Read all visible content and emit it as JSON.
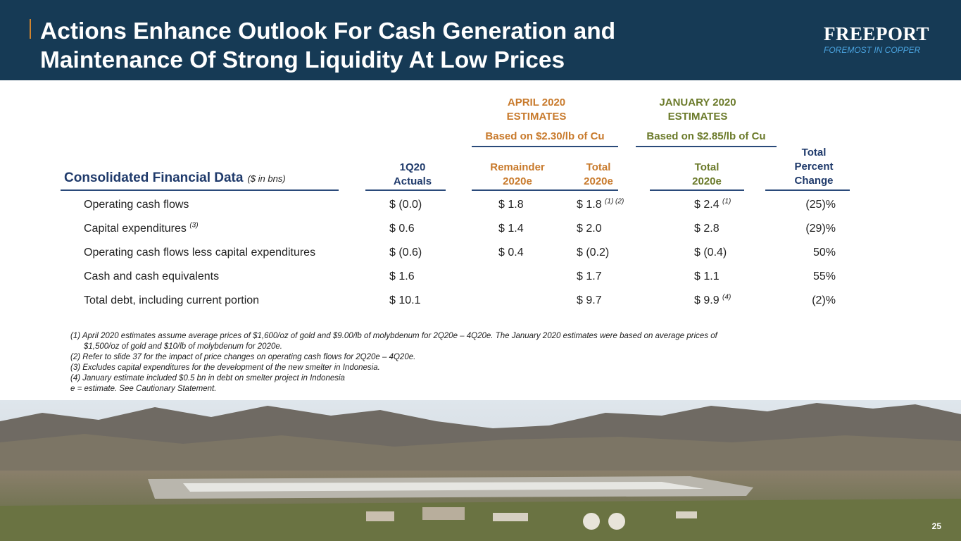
{
  "header": {
    "title_line1": "Actions Enhance Outlook For Cash Generation and",
    "title_line2": "Maintenance Of Strong Liquidity At Low Prices",
    "logo_name": "FREEPORT",
    "logo_tagline": "FOREMOST IN COPPER"
  },
  "groups": {
    "april_line1": "APRIL 2020",
    "april_line2": "ESTIMATES",
    "april_basis": "Based on $2.30/lb of Cu",
    "jan_line1": "JANUARY 2020",
    "jan_line2": "ESTIMATES",
    "jan_basis": "Based on $2.85/lb of Cu"
  },
  "columns": {
    "section": "Consolidated Financial Data",
    "unit": "($ in bns)",
    "actuals_1": "1Q20",
    "actuals_2": "Actuals",
    "remainder_1": "Remainder",
    "remainder_2": "2020e",
    "april_total_1": "Total",
    "april_total_2": "2020e",
    "jan_total_1": "Total",
    "jan_total_2": "2020e",
    "pct_1": "Total",
    "pct_2": "Percent",
    "pct_3": "Change"
  },
  "rows": [
    {
      "label": "Operating cash flows",
      "label_note": "",
      "actual": "$  (0.0)",
      "remainder": "$ 1.8",
      "april_total": "$  1.8",
      "april_note": "(1) (2)",
      "jan_total": "$  2.4",
      "jan_note": "(1)",
      "pct": "(25)%"
    },
    {
      "label": "Capital expenditures",
      "label_note": "(3)",
      "actual": "$   0.6",
      "remainder": "$ 1.4",
      "april_total": "$  2.0",
      "april_note": "",
      "jan_total": "$  2.8",
      "jan_note": "",
      "pct": "(29)%"
    },
    {
      "label": "Operating cash flows less capital expenditures",
      "label_note": "",
      "actual": "$  (0.6)",
      "remainder": "$ 0.4",
      "april_total": "$ (0.2)",
      "april_note": "",
      "jan_total": "$ (0.4)",
      "jan_note": "",
      "pct": "50%"
    },
    {
      "label": "Cash and cash equivalents",
      "label_note": "",
      "actual": "$   1.6",
      "remainder": "",
      "april_total": "$  1.7",
      "april_note": "",
      "jan_total": "$  1.1",
      "jan_note": "",
      "pct": "55%"
    },
    {
      "label": "Total debt, including current portion",
      "label_note": "",
      "actual": "$ 10.1",
      "remainder": "",
      "april_total": "$  9.7",
      "april_note": "",
      "jan_total": "$  9.9",
      "jan_note": "(4)",
      "pct": "(2)%"
    }
  ],
  "footnotes": {
    "n1a": "(1) April 2020 estimates assume average prices of $1,600/oz of gold and $9.00/lb of molybdenum for 2Q20e – 4Q20e. The January 2020 estimates were based on average prices of",
    "n1b": "$1,500/oz of gold and $10/lb of molybdenum for 2020e.",
    "n2": "(2) Refer to slide 37 for the impact of price changes on operating cash flows for 2Q20e – 4Q20e.",
    "n3": "(3) Excludes capital expenditures for the development of the new smelter in Indonesia.",
    "n4": "(4) January estimate included $0.5 bn in debt on smelter project in Indonesia",
    "n5": "e = estimate. See Cautionary Statement."
  },
  "page_number": "25",
  "colors": {
    "header_bg": "#163a55",
    "navy": "#1f3a6b",
    "april_orange": "#c87a2c",
    "jan_olive": "#6b7a2a",
    "logo_blue": "#4aa3df"
  }
}
